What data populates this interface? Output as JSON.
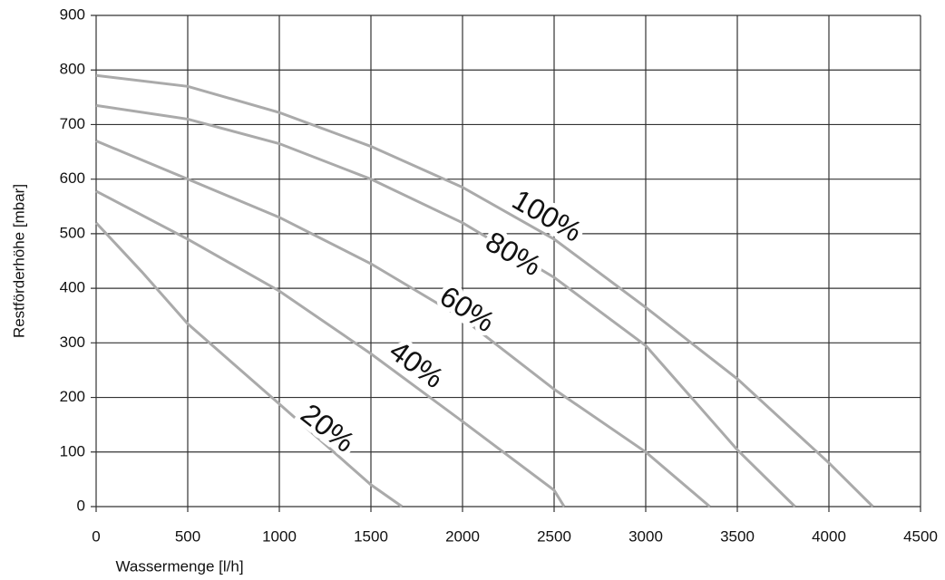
{
  "chart_data": {
    "type": "line",
    "x_label": "Wassermenge [l/h]",
    "y_label": "Restförderhöhe [mbar]",
    "xlim": [
      0,
      4500
    ],
    "xticks": [
      0,
      500,
      1000,
      1500,
      2000,
      2500,
      3000,
      3500,
      4000,
      4500
    ],
    "ylim": [
      0,
      900
    ],
    "yticks": [
      0,
      100,
      200,
      300,
      400,
      500,
      600,
      700,
      800,
      900
    ],
    "grid": true,
    "series": [
      {
        "name": "100%",
        "color": "#aaaaaa",
        "x": [
          0,
          500,
          1000,
          1500,
          2000,
          2500,
          3000,
          3500,
          4000,
          4240
        ],
        "values": [
          790,
          770,
          722,
          660,
          585,
          490,
          365,
          234,
          80,
          0
        ]
      },
      {
        "name": "80%",
        "color": "#aaaaaa",
        "x": [
          0,
          500,
          1000,
          1500,
          2000,
          2500,
          3000,
          3500,
          3815
        ],
        "values": [
          735,
          710,
          665,
          600,
          520,
          420,
          295,
          104,
          0
        ]
      },
      {
        "name": "60%",
        "color": "#aaaaaa",
        "x": [
          0,
          500,
          1000,
          1500,
          2000,
          2500,
          3000,
          3350
        ],
        "values": [
          670,
          600,
          530,
          445,
          345,
          215,
          100,
          0
        ]
      },
      {
        "name": "40%",
        "color": "#aaaaaa",
        "x": [
          0,
          500,
          1000,
          1500,
          2000,
          2500,
          2555
        ],
        "values": [
          578,
          490,
          395,
          280,
          156,
          30,
          0
        ]
      },
      {
        "name": "20%",
        "color": "#aaaaaa",
        "x": [
          0,
          250,
          500,
          1000,
          1500,
          1670
        ],
        "values": [
          520,
          430,
          335,
          188,
          40,
          0
        ]
      }
    ]
  }
}
